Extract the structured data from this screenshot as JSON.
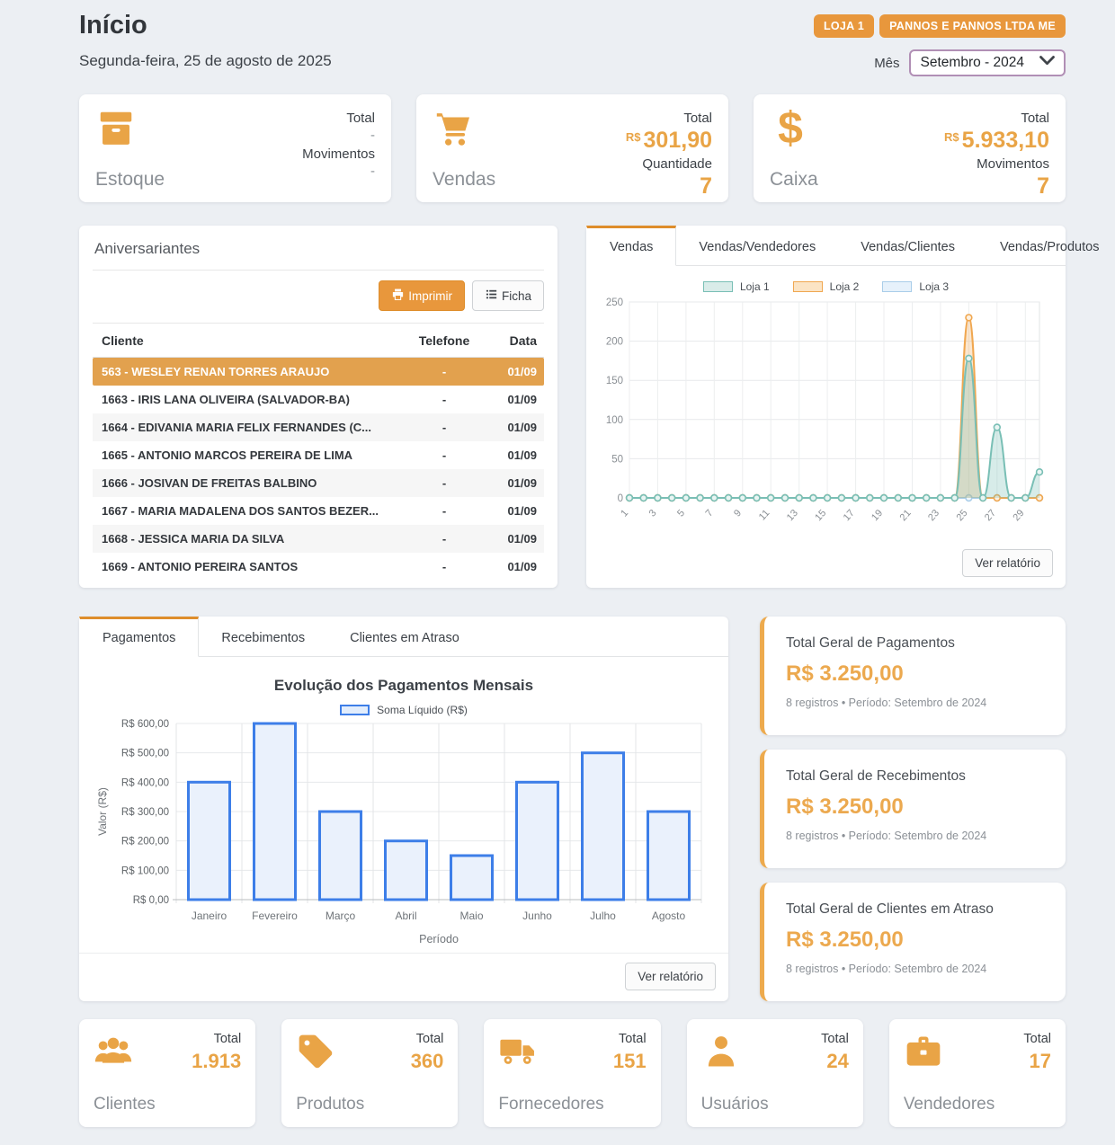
{
  "theme": {
    "accent": "#E9A446",
    "button_orange": "#E8973C",
    "highlight_row": "#E2A14E",
    "tab_active_border": "#DE8D2B"
  },
  "header": {
    "title": "Início",
    "date": "Segunda-feira, 25 de agosto de 2025",
    "badges": [
      "LOJA 1",
      "PANNOS E PANNOS LTDA ME"
    ],
    "month_label": "Mês",
    "month_value": "Setembro - 2024"
  },
  "top_cards": [
    {
      "icon": "box-icon",
      "label": "Estoque",
      "stats": [
        {
          "label": "Total",
          "prefix": "",
          "value": "-",
          "accent": false
        },
        {
          "label": "Movimentos",
          "prefix": "",
          "value": "-",
          "accent": false
        }
      ]
    },
    {
      "icon": "cart-icon",
      "label": "Vendas",
      "stats": [
        {
          "label": "Total",
          "prefix": "R$",
          "value": "301,90",
          "accent": true
        },
        {
          "label": "Quantidade",
          "prefix": "",
          "value": "7",
          "accent": true
        }
      ]
    },
    {
      "icon": "dollar-icon",
      "label": "Caixa",
      "stats": [
        {
          "label": "Total",
          "prefix": "R$",
          "value": "5.933,10",
          "accent": true
        },
        {
          "label": "Movimentos",
          "prefix": "",
          "value": "7",
          "accent": true
        }
      ]
    }
  ],
  "birthdays": {
    "title": "Aniversariantes",
    "print_button": "Imprimir",
    "ficha_button": "Ficha",
    "columns": [
      "Cliente",
      "Telefone",
      "Data"
    ],
    "rows": [
      {
        "cliente": "563 - WESLEY RENAN TORRES ARAUJO",
        "telefone": "-",
        "data": "01/09",
        "highlight": true
      },
      {
        "cliente": "1663 - IRIS LANA OLIVEIRA (SALVADOR-BA)",
        "telefone": "-",
        "data": "01/09"
      },
      {
        "cliente": "1664 - EDIVANIA MARIA FELIX FERNANDES (C...",
        "telefone": "-",
        "data": "01/09"
      },
      {
        "cliente": "1665 - ANTONIO MARCOS PEREIRA DE LIMA",
        "telefone": "-",
        "data": "01/09"
      },
      {
        "cliente": "1666 - JOSIVAN DE FREITAS BALBINO",
        "telefone": "-",
        "data": "01/09"
      },
      {
        "cliente": "1667 - MARIA MADALENA DOS SANTOS BEZER...",
        "telefone": "-",
        "data": "01/09"
      },
      {
        "cliente": "1668 - JESSICA MARIA DA SILVA",
        "telefone": "-",
        "data": "01/09"
      },
      {
        "cliente": "1669 - ANTONIO PEREIRA SANTOS",
        "telefone": "-",
        "data": "01/09"
      }
    ]
  },
  "sales_panel": {
    "tabs": [
      {
        "label": "Vendas",
        "active": true
      },
      {
        "label": "Vendas/Vendedores"
      },
      {
        "label": "Vendas/Clientes"
      },
      {
        "label": "Vendas/Produtos"
      }
    ],
    "report_button": "Ver relatório"
  },
  "payments_panel": {
    "tabs": [
      {
        "label": "Pagamentos",
        "active": true
      },
      {
        "label": "Recebimentos"
      },
      {
        "label": "Clientes em Atraso"
      }
    ],
    "report_button": "Ver relatório"
  },
  "totals_cards": [
    {
      "title": "Total Geral de Pagamentos",
      "value": "R$ 3.250,00",
      "meta": "8 registros • Período: Setembro de 2024"
    },
    {
      "title": "Total Geral de Recebimentos",
      "value": "R$ 3.250,00",
      "meta": "8 registros • Período: Setembro de 2024"
    },
    {
      "title": "Total Geral de Clientes em Atraso",
      "value": "R$ 3.250,00",
      "meta": "8 registros • Período: Setembro de 2024"
    }
  ],
  "bottom_cards": [
    {
      "icon": "people-icon",
      "label": "Clientes",
      "total_label": "Total",
      "value": "1.913"
    },
    {
      "icon": "tag-icon",
      "label": "Produtos",
      "total_label": "Total",
      "value": "360"
    },
    {
      "icon": "truck-icon",
      "label": "Fornecedores",
      "total_label": "Total",
      "value": "151"
    },
    {
      "icon": "person-icon",
      "label": "Usuários",
      "total_label": "Total",
      "value": "24"
    },
    {
      "icon": "briefcase-icon",
      "label": "Vendedores",
      "total_label": "Total",
      "value": "17"
    }
  ],
  "chart_data": [
    {
      "type": "line",
      "title": "",
      "x": [
        1,
        2,
        3,
        4,
        5,
        6,
        7,
        8,
        9,
        10,
        11,
        12,
        13,
        14,
        15,
        16,
        17,
        18,
        19,
        20,
        21,
        22,
        23,
        24,
        25,
        26,
        27,
        28,
        29,
        30
      ],
      "xticks": [
        1,
        3,
        5,
        7,
        9,
        11,
        13,
        15,
        17,
        19,
        21,
        23,
        25,
        27,
        29
      ],
      "ylim": [
        0,
        250
      ],
      "yticks": [
        0,
        50,
        100,
        150,
        200,
        250
      ],
      "grid": true,
      "legend_position": "top",
      "series": [
        {
          "name": "Loja 1",
          "color": "#79BFB5",
          "fill": "rgba(121,191,181,0.30)",
          "legend_fill": "#D9ECE9",
          "dot_fill": "#EAF5F3",
          "values": [
            0,
            0,
            0,
            0,
            0,
            0,
            0,
            0,
            0,
            0,
            0,
            0,
            0,
            0,
            0,
            0,
            0,
            0,
            0,
            0,
            0,
            0,
            0,
            0,
            178,
            0,
            90,
            0,
            0,
            33
          ]
        },
        {
          "name": "Loja 2",
          "color": "#F0A750",
          "fill": "rgba(240,167,80,0.28)",
          "legend_fill": "#FBE4C5",
          "dot_fill": "#FDF0DE",
          "values": [
            0,
            0,
            0,
            0,
            0,
            0,
            0,
            0,
            0,
            0,
            0,
            0,
            0,
            0,
            0,
            0,
            0,
            0,
            0,
            0,
            0,
            0,
            0,
            0,
            230,
            0,
            0,
            0,
            0,
            0
          ]
        },
        {
          "name": "Loja 3",
          "color": "#A9CDE9",
          "fill": "rgba(169,205,233,0.30)",
          "legend_fill": "#E6F1FB",
          "dot_fill": "#F0F7FD",
          "values": [
            0,
            0,
            0,
            0,
            0,
            0,
            0,
            0,
            0,
            0,
            0,
            0,
            0,
            0,
            0,
            0,
            0,
            0,
            0,
            0,
            0,
            0,
            0,
            0,
            0,
            0,
            0,
            0,
            0,
            0
          ]
        }
      ]
    },
    {
      "type": "bar",
      "title": "Evolução dos Pagamentos Mensais",
      "legend": "Soma Líquido (R$)",
      "categories": [
        "Janeiro",
        "Fevereiro",
        "Março",
        "Abril",
        "Maio",
        "Junho",
        "Julho",
        "Agosto"
      ],
      "values": [
        400,
        600,
        300,
        200,
        150,
        400,
        500,
        300
      ],
      "xlabel": "Período",
      "ylabel": "Valor (R$)",
      "ylim": [
        0,
        600
      ],
      "yticks": [
        0,
        100,
        200,
        300,
        400,
        500,
        600
      ],
      "ytick_labels": [
        "R$ 0,00",
        "R$ 100,00",
        "R$ 200,00",
        "R$ 300,00",
        "R$ 400,00",
        "R$ 500,00",
        "R$ 600,00"
      ],
      "grid": true,
      "bar_color": "#3D7EE8",
      "bar_fill": "#EAF1FC"
    }
  ]
}
